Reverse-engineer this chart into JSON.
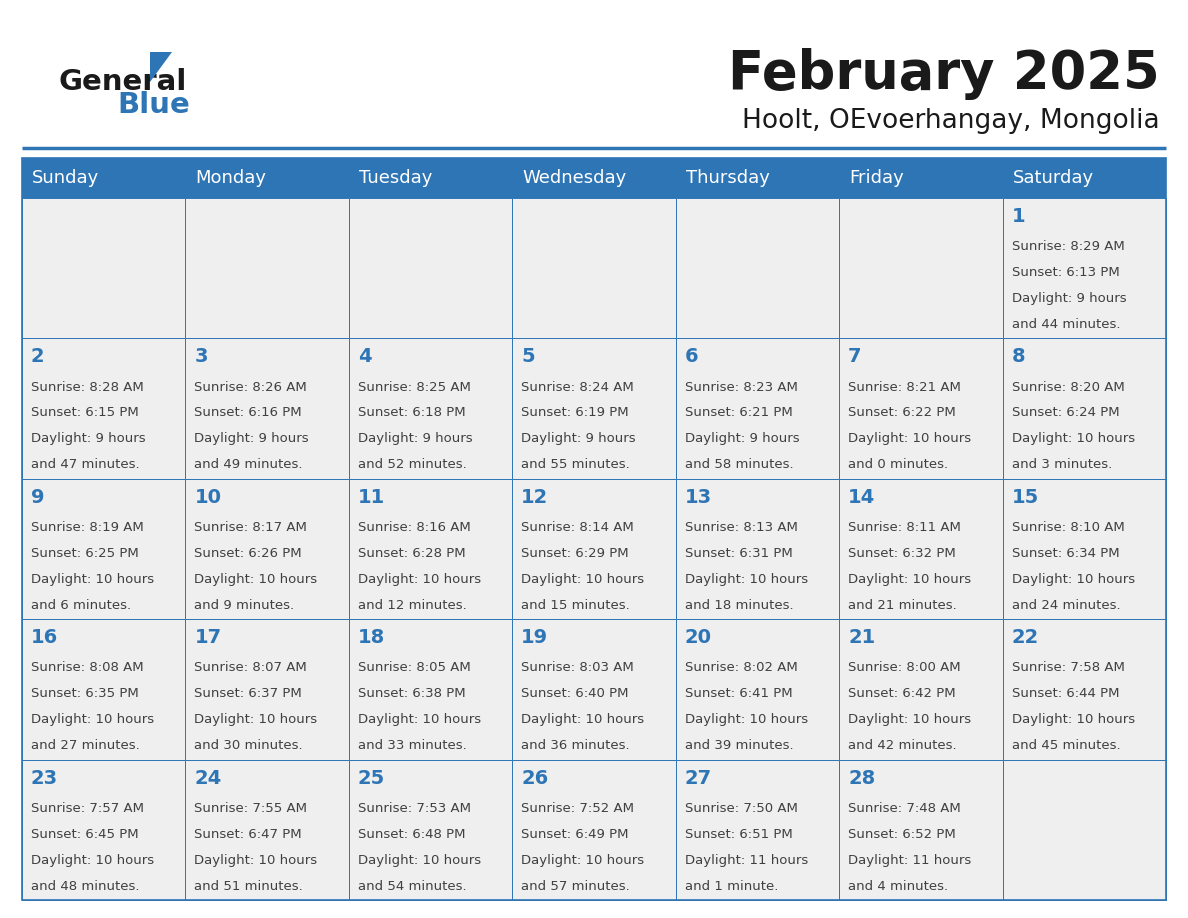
{
  "title": "February 2025",
  "subtitle": "Hoolt, OEvoerhangay, Mongolia",
  "days_of_week": [
    "Sunday",
    "Monday",
    "Tuesday",
    "Wednesday",
    "Thursday",
    "Friday",
    "Saturday"
  ],
  "header_bg": "#2E75B6",
  "header_text": "#FFFFFF",
  "cell_bg": "#EFEFEF",
  "border_color": "#2E75B6",
  "day_num_color": "#2E75B6",
  "text_color": "#404040",
  "title_color": "#1A1A1A",
  "logo_black": "#1A1A1A",
  "logo_blue": "#2E75B6",
  "calendar_data": [
    [
      null,
      null,
      null,
      null,
      null,
      null,
      {
        "day": "1",
        "sunrise": "8:29 AM",
        "sunset": "6:13 PM",
        "daylight1": "Daylight: 9 hours",
        "daylight2": "and 44 minutes."
      }
    ],
    [
      {
        "day": "2",
        "sunrise": "8:28 AM",
        "sunset": "6:15 PM",
        "daylight1": "Daylight: 9 hours",
        "daylight2": "and 47 minutes."
      },
      {
        "day": "3",
        "sunrise": "8:26 AM",
        "sunset": "6:16 PM",
        "daylight1": "Daylight: 9 hours",
        "daylight2": "and 49 minutes."
      },
      {
        "day": "4",
        "sunrise": "8:25 AM",
        "sunset": "6:18 PM",
        "daylight1": "Daylight: 9 hours",
        "daylight2": "and 52 minutes."
      },
      {
        "day": "5",
        "sunrise": "8:24 AM",
        "sunset": "6:19 PM",
        "daylight1": "Daylight: 9 hours",
        "daylight2": "and 55 minutes."
      },
      {
        "day": "6",
        "sunrise": "8:23 AM",
        "sunset": "6:21 PM",
        "daylight1": "Daylight: 9 hours",
        "daylight2": "and 58 minutes."
      },
      {
        "day": "7",
        "sunrise": "8:21 AM",
        "sunset": "6:22 PM",
        "daylight1": "Daylight: 10 hours",
        "daylight2": "and 0 minutes."
      },
      {
        "day": "8",
        "sunrise": "8:20 AM",
        "sunset": "6:24 PM",
        "daylight1": "Daylight: 10 hours",
        "daylight2": "and 3 minutes."
      }
    ],
    [
      {
        "day": "9",
        "sunrise": "8:19 AM",
        "sunset": "6:25 PM",
        "daylight1": "Daylight: 10 hours",
        "daylight2": "and 6 minutes."
      },
      {
        "day": "10",
        "sunrise": "8:17 AM",
        "sunset": "6:26 PM",
        "daylight1": "Daylight: 10 hours",
        "daylight2": "and 9 minutes."
      },
      {
        "day": "11",
        "sunrise": "8:16 AM",
        "sunset": "6:28 PM",
        "daylight1": "Daylight: 10 hours",
        "daylight2": "and 12 minutes."
      },
      {
        "day": "12",
        "sunrise": "8:14 AM",
        "sunset": "6:29 PM",
        "daylight1": "Daylight: 10 hours",
        "daylight2": "and 15 minutes."
      },
      {
        "day": "13",
        "sunrise": "8:13 AM",
        "sunset": "6:31 PM",
        "daylight1": "Daylight: 10 hours",
        "daylight2": "and 18 minutes."
      },
      {
        "day": "14",
        "sunrise": "8:11 AM",
        "sunset": "6:32 PM",
        "daylight1": "Daylight: 10 hours",
        "daylight2": "and 21 minutes."
      },
      {
        "day": "15",
        "sunrise": "8:10 AM",
        "sunset": "6:34 PM",
        "daylight1": "Daylight: 10 hours",
        "daylight2": "and 24 minutes."
      }
    ],
    [
      {
        "day": "16",
        "sunrise": "8:08 AM",
        "sunset": "6:35 PM",
        "daylight1": "Daylight: 10 hours",
        "daylight2": "and 27 minutes."
      },
      {
        "day": "17",
        "sunrise": "8:07 AM",
        "sunset": "6:37 PM",
        "daylight1": "Daylight: 10 hours",
        "daylight2": "and 30 minutes."
      },
      {
        "day": "18",
        "sunrise": "8:05 AM",
        "sunset": "6:38 PM",
        "daylight1": "Daylight: 10 hours",
        "daylight2": "and 33 minutes."
      },
      {
        "day": "19",
        "sunrise": "8:03 AM",
        "sunset": "6:40 PM",
        "daylight1": "Daylight: 10 hours",
        "daylight2": "and 36 minutes."
      },
      {
        "day": "20",
        "sunrise": "8:02 AM",
        "sunset": "6:41 PM",
        "daylight1": "Daylight: 10 hours",
        "daylight2": "and 39 minutes."
      },
      {
        "day": "21",
        "sunrise": "8:00 AM",
        "sunset": "6:42 PM",
        "daylight1": "Daylight: 10 hours",
        "daylight2": "and 42 minutes."
      },
      {
        "day": "22",
        "sunrise": "7:58 AM",
        "sunset": "6:44 PM",
        "daylight1": "Daylight: 10 hours",
        "daylight2": "and 45 minutes."
      }
    ],
    [
      {
        "day": "23",
        "sunrise": "7:57 AM",
        "sunset": "6:45 PM",
        "daylight1": "Daylight: 10 hours",
        "daylight2": "and 48 minutes."
      },
      {
        "day": "24",
        "sunrise": "7:55 AM",
        "sunset": "6:47 PM",
        "daylight1": "Daylight: 10 hours",
        "daylight2": "and 51 minutes."
      },
      {
        "day": "25",
        "sunrise": "7:53 AM",
        "sunset": "6:48 PM",
        "daylight1": "Daylight: 10 hours",
        "daylight2": "and 54 minutes."
      },
      {
        "day": "26",
        "sunrise": "7:52 AM",
        "sunset": "6:49 PM",
        "daylight1": "Daylight: 10 hours",
        "daylight2": "and 57 minutes."
      },
      {
        "day": "27",
        "sunrise": "7:50 AM",
        "sunset": "6:51 PM",
        "daylight1": "Daylight: 11 hours",
        "daylight2": "and 1 minute."
      },
      {
        "day": "28",
        "sunrise": "7:48 AM",
        "sunset": "6:52 PM",
        "daylight1": "Daylight: 11 hours",
        "daylight2": "and 4 minutes."
      },
      null
    ]
  ]
}
